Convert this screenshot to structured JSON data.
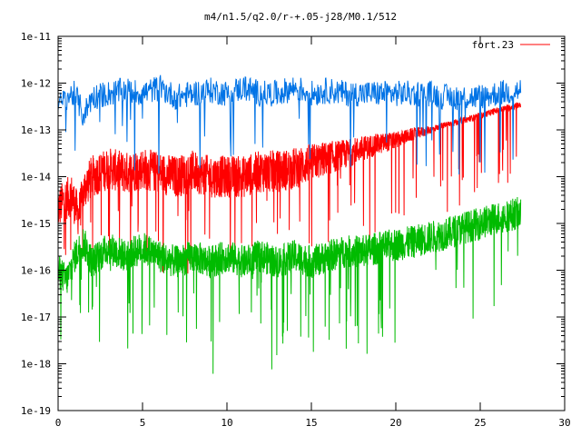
{
  "chart_data": {
    "type": "line",
    "title": "m4/n1.5/q2.0/r-+.05-j28/M0.1/512",
    "xlabel": "",
    "ylabel": "",
    "xlim": [
      0,
      30
    ],
    "ylim": [
      1e-19,
      1e-11
    ],
    "yscale": "log",
    "grid": false,
    "legend_position": "top-right",
    "x_ticks": [
      0,
      5,
      10,
      15,
      20,
      25,
      30
    ],
    "x_tick_labels": [
      "0",
      "5",
      "10",
      "15",
      "20",
      "25",
      "30"
    ],
    "y_ticks": [
      1e-11,
      1e-12,
      1e-13,
      1e-14,
      1e-15,
      1e-16,
      1e-17,
      1e-18,
      1e-19
    ],
    "y_tick_labels": [
      "1e-11",
      "1e-12",
      "1e-13",
      "1e-14",
      "1e-15",
      "1e-16",
      "1e-17",
      "1e-18",
      "1e-19"
    ],
    "series": [
      {
        "name": "fort.23",
        "color": "#ff0000",
        "x": [
          0,
          0.3,
          0.8,
          1.2,
          1.6,
          2,
          3,
          4,
          5,
          6,
          7,
          8,
          9,
          10,
          11,
          12,
          13,
          14,
          15,
          16,
          17,
          18,
          19,
          20,
          21,
          22,
          23,
          24,
          25,
          26,
          27.4
        ],
        "y": [
          2e-15,
          3e-15,
          4e-15,
          1.5e-15,
          6e-15,
          1e-14,
          1.5e-14,
          1.2e-14,
          1.5e-14,
          1.2e-14,
          1e-14,
          1.3e-14,
          1e-14,
          1e-14,
          1e-14,
          1.3e-14,
          1.3e-14,
          1.5e-14,
          2e-14,
          2.5e-14,
          3e-14,
          4e-14,
          5e-14,
          6e-14,
          8e-14,
          1e-13,
          1.3e-13,
          1.6e-13,
          2e-13,
          2.6e-13,
          3.5e-13
        ]
      },
      {
        "color": "#0073e6",
        "x": [
          0,
          0.5,
          1,
          1.5,
          2,
          3,
          4,
          5,
          6,
          7,
          8,
          9,
          10,
          11,
          12,
          13,
          14,
          15,
          16,
          17,
          18,
          19,
          20,
          21,
          22,
          23,
          24,
          25,
          26,
          27.4
        ],
        "y": [
          3e-13,
          5e-13,
          6e-13,
          2e-13,
          5e-13,
          6e-13,
          7e-13,
          6e-13,
          8e-13,
          5e-13,
          6e-13,
          7e-13,
          6e-13,
          8e-13,
          6e-13,
          6e-13,
          8e-13,
          6e-13,
          7e-13,
          6e-13,
          6e-13,
          6e-13,
          6e-13,
          6e-13,
          6e-13,
          5e-13,
          5e-13,
          5e-13,
          6e-13,
          7e-13
        ]
      },
      {
        "color": "#00bb00",
        "x": [
          0,
          0.5,
          1,
          1.5,
          2,
          3,
          4,
          5,
          6,
          7,
          8,
          9,
          10,
          11,
          12,
          13,
          14,
          15,
          16,
          17,
          18,
          19,
          20,
          21,
          22,
          23,
          24,
          25,
          26,
          27.4
        ],
        "y": [
          1e-16,
          6e-17,
          2e-16,
          4e-16,
          1.5e-16,
          3e-16,
          2e-16,
          3e-16,
          2e-16,
          1.5e-16,
          2e-16,
          1.5e-16,
          2e-16,
          1.5e-16,
          2e-16,
          1.5e-16,
          2e-16,
          1.5e-16,
          2e-16,
          2.5e-16,
          2.5e-16,
          3e-16,
          3.5e-16,
          4e-16,
          5e-16,
          6e-16,
          8e-16,
          1e-15,
          1.3e-15,
          1.7e-15
        ]
      }
    ]
  }
}
